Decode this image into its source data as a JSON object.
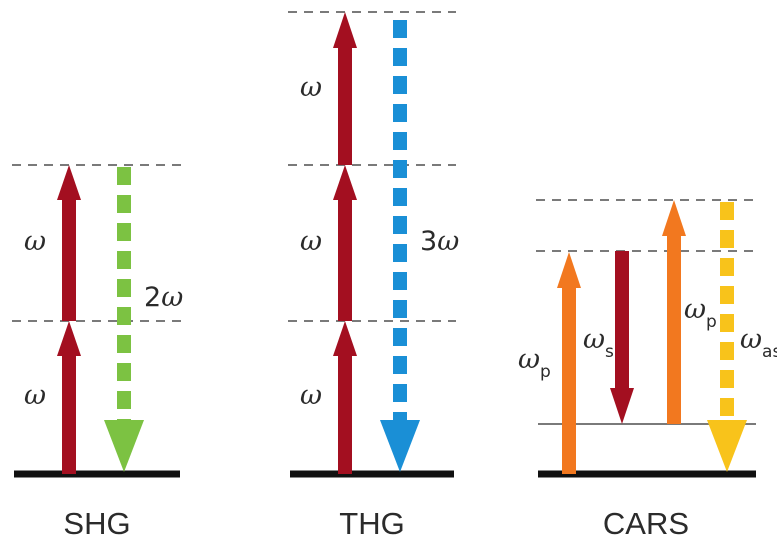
{
  "colors": {
    "pump_red": "#a30f20",
    "shg_green": "#7cc242",
    "thg_blue": "#1a8fd6",
    "cars_orange": "#f2781f",
    "cars_yellow": "#f8c31b",
    "ground": "#111111",
    "virtual_level": "#7a7a7a",
    "text": "#2b2b2b"
  },
  "panels": {
    "shg": {
      "label": "SHG",
      "upper_omega": "ω",
      "lower_omega": "ω",
      "output_coef": "2",
      "output_omega": "ω"
    },
    "thg": {
      "label": "THG",
      "top_omega": "ω",
      "mid_omega": "ω",
      "bottom_omega": "ω",
      "output_coef": "3",
      "output_omega": "ω"
    },
    "cars": {
      "label": "CARS",
      "pump1_symbol": "ω",
      "pump1_sub": "p",
      "stokes_symbol": "ω",
      "stokes_sub": "s",
      "pump2_symbol": "ω",
      "pump2_sub": "p",
      "antistokes_symbol": "ω",
      "antistokes_sub": "as"
    }
  }
}
